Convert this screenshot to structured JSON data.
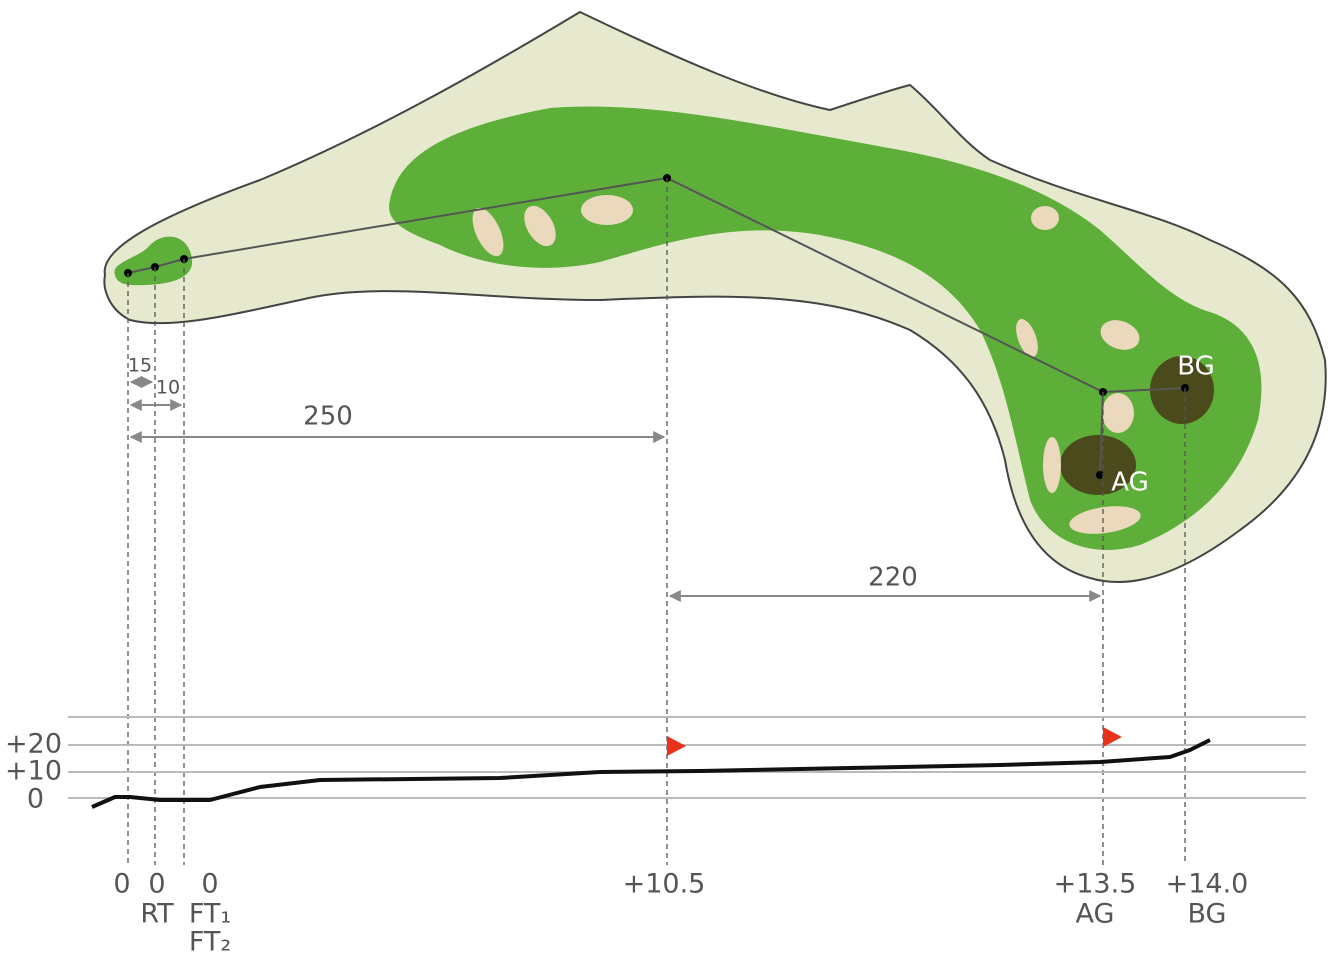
{
  "green_labels": {
    "back": "BG",
    "front": "AG"
  },
  "distances": [
    "15",
    "10",
    "250",
    "220"
  ],
  "elevation_axis": [
    "+20",
    "+10",
    "0"
  ],
  "points": [
    {
      "elevation": "0"
    },
    {
      "elevation": "0",
      "label": "RT"
    },
    {
      "elevation": "0",
      "label": "FT₁",
      "label2": "FT₂"
    },
    {
      "elevation": "+10.5"
    },
    {
      "elevation": "+13.5",
      "label": "AG"
    },
    {
      "elevation": "+14.0",
      "label": "BG"
    }
  ]
}
